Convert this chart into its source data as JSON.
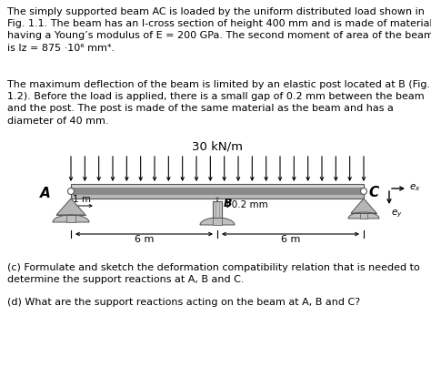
{
  "para1_line1": "The simply supported beam ",
  "para1_AC": "AC",
  "para1_rest": " is loaded by the uniform distributed load shown in",
  "para1": "The simply supported beam AC is loaded by the uniform distributed load shown in\nFig. 1.1. The beam has an I-cross section of height 400 mm and is made of material\nhaving a Young’s modulus of E = 200 GPa. The second moment of area of the beam\nis Iz = 875 ·10⁶ mm⁴.",
  "para2": "The maximum deflection of the beam is limited by an elastic post located at B (Fig.\n1.2). Before the load is applied, there is a small gap of 0.2 mm between the beam\nand the post. The post is made of the same material as the beam and has a\ndiameter of 40 mm.",
  "para_c": "(c) Formulate and sketch the deformation compatibility relation that is needed to\ndetermine the support reactions at A, B and C.",
  "para_d": "(d) What are the support reactions acting on the beam at A, B and C?",
  "load_label": "30 kN/m",
  "dim_1m": "1 m",
  "dim_6m_left": "6 m",
  "dim_6m_right": "6 m",
  "label_A": "A",
  "label_B": "B",
  "label_C": "C",
  "label_ex": "e",
  "label_ey": "e",
  "gap_label": "↕0.2 mm",
  "bg_color": "#ffffff",
  "text_color": "#000000",
  "beam_top_color": "#d8d8d8",
  "beam_mid_color": "#909090",
  "beam_bot_color": "#c0c0c0",
  "support_color": "#c0c0c0",
  "post_color": "#c8c8c8"
}
